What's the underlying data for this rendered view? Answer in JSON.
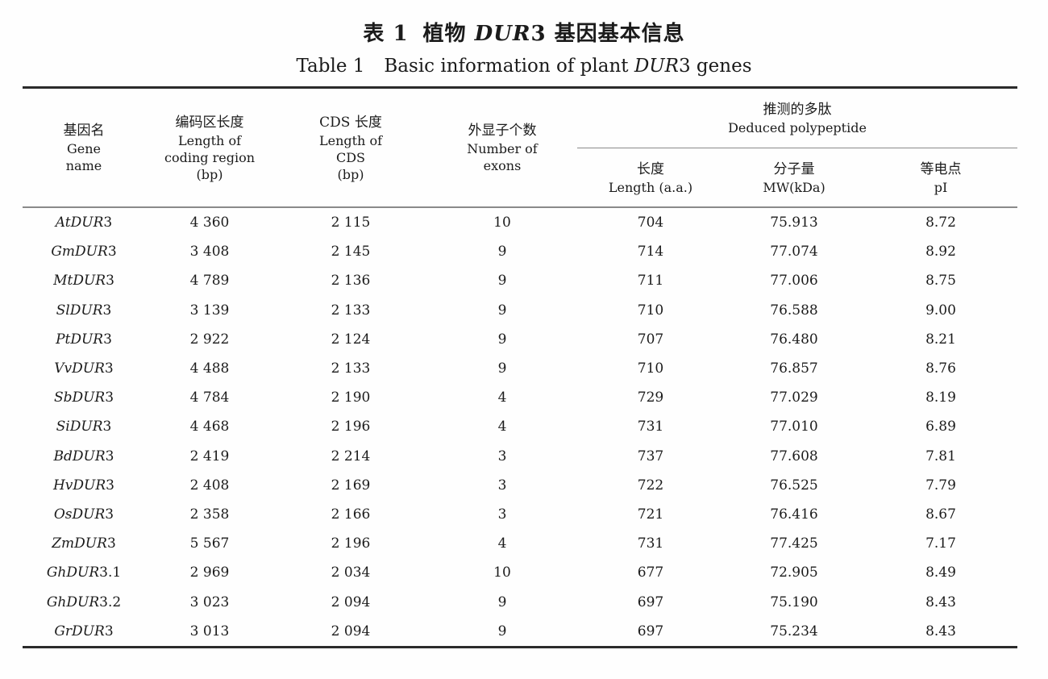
{
  "title": {
    "zh_label": "表 1",
    "zh_pre": "植物 ",
    "zh_italic": "DUR",
    "zh_post": "3 基因基本信息",
    "en_label": "Table 1",
    "en_pre": "Basic information of plant ",
    "en_italic": "DUR",
    "en_post": "3 genes"
  },
  "table": {
    "header": {
      "gene": {
        "zh": "基因名",
        "en": [
          "Gene",
          "name"
        ]
      },
      "coding": {
        "zh": "编码区长度",
        "en": [
          "Length of",
          "coding region",
          "(bp)"
        ]
      },
      "cds": {
        "zh": "CDS 长度",
        "en": [
          "Length of",
          "CDS",
          "(bp)"
        ]
      },
      "exons": {
        "zh": "外显子个数",
        "en": [
          "Number of",
          "exons"
        ]
      },
      "group": {
        "zh": "推测的多肽",
        "en": "Deduced polypeptide"
      },
      "length": {
        "zh": "长度",
        "en": "Length (a.a.)"
      },
      "mw": {
        "zh": "分子量",
        "en": "MW(kDa)"
      },
      "pi": {
        "zh": "等电点",
        "en": "pI"
      }
    },
    "rows": [
      {
        "gene_i": "AtDUR",
        "gene_s": "3",
        "coding": "4 360",
        "cds": "2 115",
        "exons": "10",
        "length": "704",
        "mw": "75.913",
        "pi": "8.72"
      },
      {
        "gene_i": "GmDUR",
        "gene_s": "3",
        "coding": "3 408",
        "cds": "2 145",
        "exons": "9",
        "length": "714",
        "mw": "77.074",
        "pi": "8.92"
      },
      {
        "gene_i": "MtDUR",
        "gene_s": "3",
        "coding": "4 789",
        "cds": "2 136",
        "exons": "9",
        "length": "711",
        "mw": "77.006",
        "pi": "8.75"
      },
      {
        "gene_i": "SlDUR",
        "gene_s": "3",
        "coding": "3 139",
        "cds": "2 133",
        "exons": "9",
        "length": "710",
        "mw": "76.588",
        "pi": "9.00"
      },
      {
        "gene_i": "PtDUR",
        "gene_s": "3",
        "coding": "2 922",
        "cds": "2 124",
        "exons": "9",
        "length": "707",
        "mw": "76.480",
        "pi": "8.21"
      },
      {
        "gene_i": "VvDUR",
        "gene_s": "3",
        "coding": "4 488",
        "cds": "2 133",
        "exons": "9",
        "length": "710",
        "mw": "76.857",
        "pi": "8.76"
      },
      {
        "gene_i": "SbDUR",
        "gene_s": "3",
        "coding": "4 784",
        "cds": "2 190",
        "exons": "4",
        "length": "729",
        "mw": "77.029",
        "pi": "8.19"
      },
      {
        "gene_i": "SiDUR",
        "gene_s": "3",
        "coding": "4 468",
        "cds": "2 196",
        "exons": "4",
        "length": "731",
        "mw": "77.010",
        "pi": "6.89"
      },
      {
        "gene_i": "BdDUR",
        "gene_s": "3",
        "coding": "2 419",
        "cds": "2 214",
        "exons": "3",
        "length": "737",
        "mw": "77.608",
        "pi": "7.81"
      },
      {
        "gene_i": "HvDUR",
        "gene_s": "3",
        "coding": "2 408",
        "cds": "2 169",
        "exons": "3",
        "length": "722",
        "mw": "76.525",
        "pi": "7.79"
      },
      {
        "gene_i": "OsDUR",
        "gene_s": "3",
        "coding": "2 358",
        "cds": "2 166",
        "exons": "3",
        "length": "721",
        "mw": "76.416",
        "pi": "8.67"
      },
      {
        "gene_i": "ZmDUR",
        "gene_s": "3",
        "coding": "5 567",
        "cds": "2 196",
        "exons": "4",
        "length": "731",
        "mw": "77.425",
        "pi": "7.17"
      },
      {
        "gene_i": "GhDUR",
        "gene_s": "3.1",
        "coding": "2 969",
        "cds": "2 034",
        "exons": "10",
        "length": "677",
        "mw": "72.905",
        "pi": "8.49"
      },
      {
        "gene_i": "GhDUR",
        "gene_s": "3.2",
        "coding": "3 023",
        "cds": "2 094",
        "exons": "9",
        "length": "697",
        "mw": "75.190",
        "pi": "8.43"
      },
      {
        "gene_i": "GrDUR",
        "gene_s": "3",
        "coding": "3 013",
        "cds": "2 094",
        "exons": "9",
        "length": "697",
        "mw": "75.234",
        "pi": "8.43"
      }
    ]
  },
  "colors": {
    "rule_heavy": "#2b2b2b",
    "rule_light": "#8a8a8a",
    "text": "#1b1b1b",
    "background": "#fefefe"
  }
}
